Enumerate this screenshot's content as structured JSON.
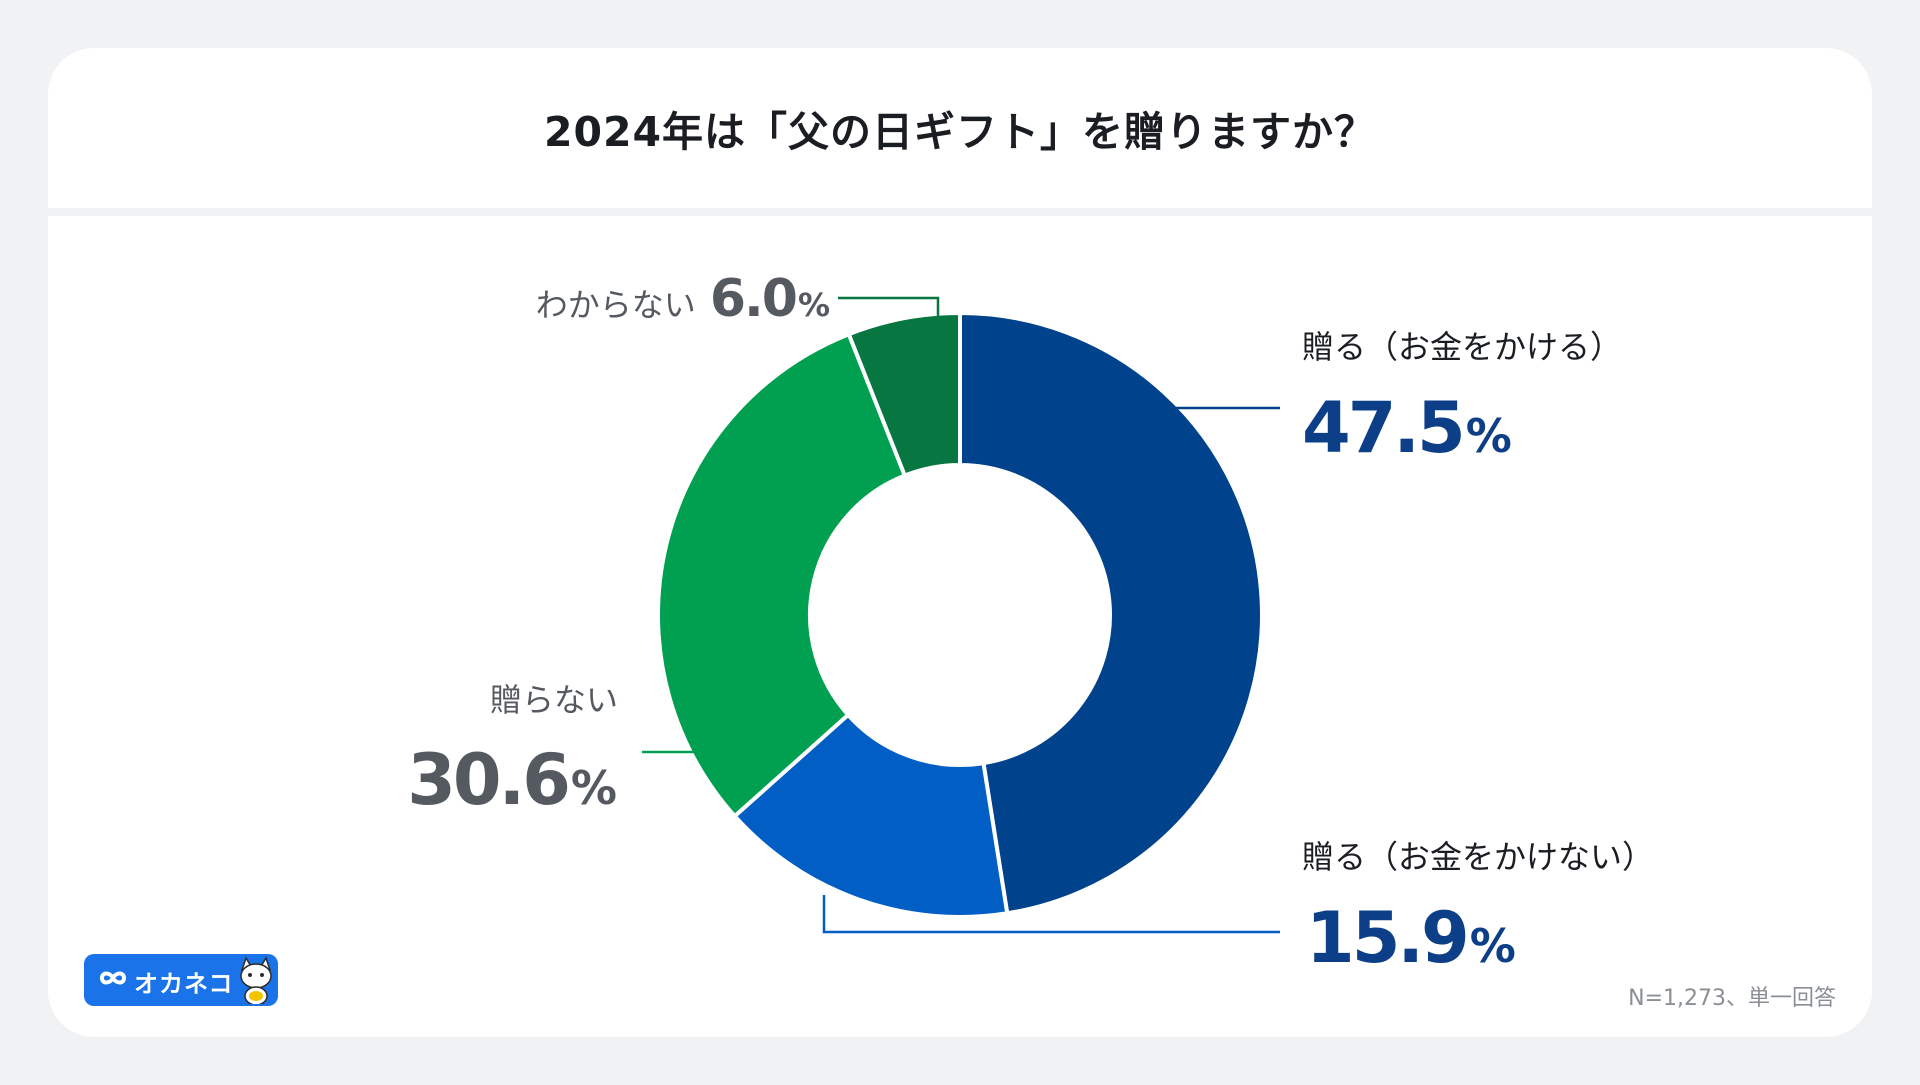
{
  "title": "2024年は「父の日ギフト」を贈りますか？",
  "footnote": "N=1,273、単一回答",
  "logo": {
    "text": "オカネコ",
    "icon": "infinity-icon",
    "mascot": "cat-mascot-icon"
  },
  "colors": {
    "background": "#f1f2f4",
    "card": "#ffffff",
    "title": "#1a1d22",
    "label_gray": "#555a61",
    "value_blue": "#0c3f88",
    "logo_blue": "#1a73e8"
  },
  "chart_data": {
    "type": "pie",
    "style": "donut",
    "title": "2024年は「父の日ギフト」を贈りますか？",
    "slices": [
      {
        "label": "贈る（お金をかける）",
        "value": 47.5,
        "value_text": "47.5",
        "unit": "%",
        "color": "#00428c",
        "text_color": "#0c3f88"
      },
      {
        "label": "贈る（お金をかけない）",
        "value": 15.9,
        "value_text": "15.9",
        "unit": "%",
        "color": "#005ec4",
        "text_color": "#0c3f88"
      },
      {
        "label": "贈らない",
        "value": 30.6,
        "value_text": "30.6",
        "unit": "%",
        "color": "#00a050",
        "text_color": "#555a61"
      },
      {
        "label": "わからない",
        "value": 6.0,
        "value_text": "6.0",
        "unit": "%",
        "color": "#077640",
        "text_color": "#555a61"
      }
    ]
  }
}
